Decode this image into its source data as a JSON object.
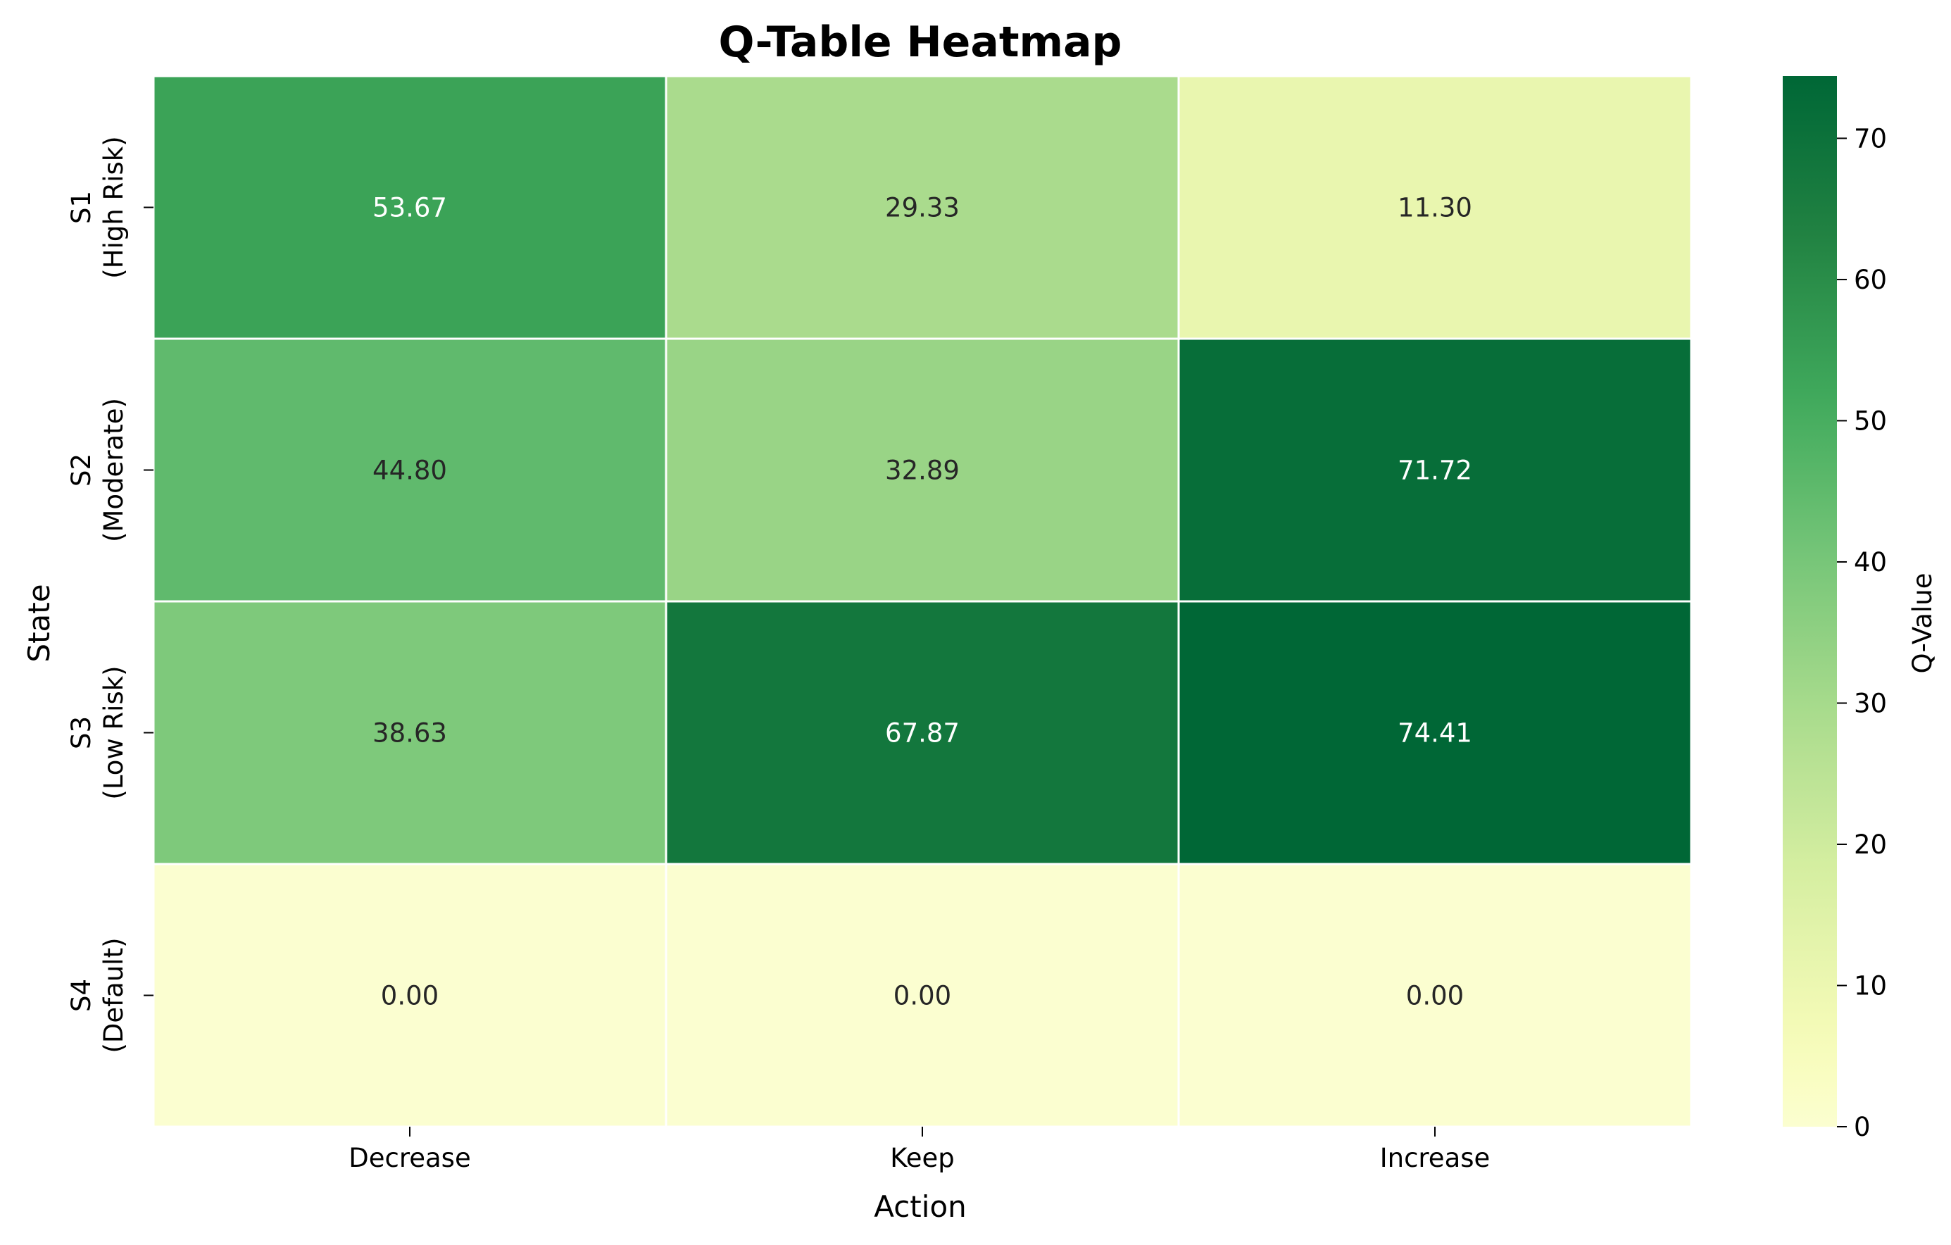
{
  "chart_data": {
    "type": "heatmap",
    "title": "Q-Table Heatmap",
    "xlabel": "Action",
    "ylabel": "State",
    "x_categories": [
      "Decrease",
      "Keep",
      "Increase"
    ],
    "y_categories": [
      [
        "S1",
        "(High Risk)"
      ],
      [
        "S2",
        "(Moderate)"
      ],
      [
        "S3",
        "(Low Risk)"
      ],
      [
        "S4",
        "(Default)"
      ]
    ],
    "values": [
      [
        53.67,
        29.33,
        11.3
      ],
      [
        44.8,
        32.89,
        71.72
      ],
      [
        38.63,
        67.87,
        74.41
      ],
      [
        0.0,
        0.0,
        0.0
      ]
    ],
    "value_format": "2 decimals",
    "colormap": "YlGn",
    "colorbar": {
      "label": "Q-Value",
      "range": [
        0,
        74.41
      ],
      "ticks": [
        0,
        10,
        20,
        30,
        40,
        50,
        60,
        70
      ]
    },
    "grid": false
  }
}
